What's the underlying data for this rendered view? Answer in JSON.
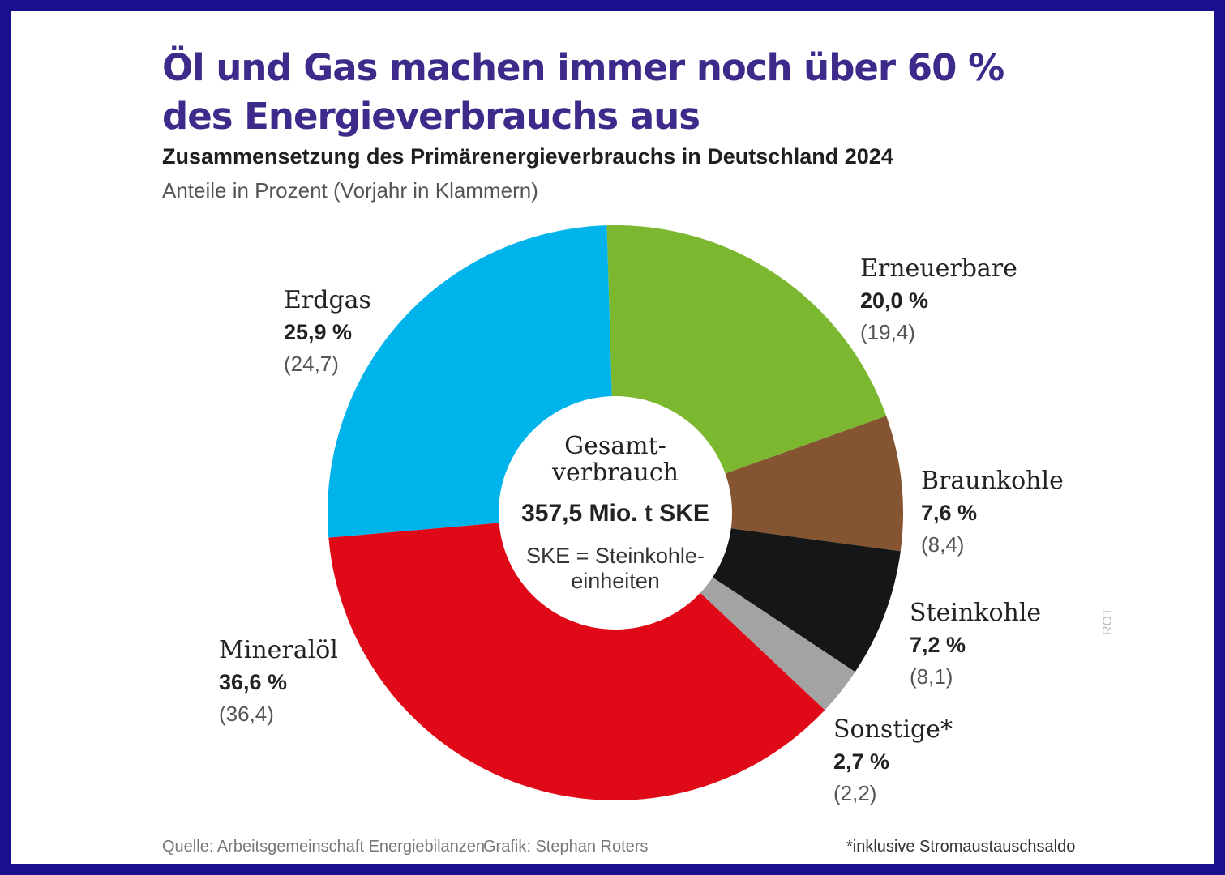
{
  "title_line1": "Öl und Gas machen immer noch über 60 %",
  "title_line2": "des Energieverbrauchs aus",
  "subtitle": "Zusammensetzung des Primärenergieverbrauchs in Deutschland 2024",
  "unit_note": "Anteile in Prozent (Vorjahr in Klammern)",
  "center": {
    "line1": "Gesamt-",
    "line2": "verbrauch",
    "total": "357,5 Mio. t SKE",
    "note1": "SKE = Steinkohle-",
    "note2": "einheiten"
  },
  "chart_data": {
    "type": "pie",
    "variant": "donut",
    "title": "Zusammensetzung des Primärenergieverbrauchs in Deutschland 2024",
    "unit": "Prozent",
    "series": [
      {
        "name": "Erneuerbare",
        "value": 20.0,
        "value_label": "20,0 %",
        "prev": 19.4,
        "prev_label": "(19,4)",
        "color": "#7cb82f"
      },
      {
        "name": "Braunkohle",
        "value": 7.6,
        "value_label": "7,6 %",
        "prev": 8.4,
        "prev_label": "(8,4)",
        "color": "#855532"
      },
      {
        "name": "Steinkohle",
        "value": 7.2,
        "value_label": "7,2 %",
        "prev": 8.1,
        "prev_label": "(8,1)",
        "color": "#161616"
      },
      {
        "name": "Sonstige*",
        "value": 2.7,
        "value_label": "2,7 %",
        "prev": 2.2,
        "prev_label": "(2,2)",
        "color": "#a3a3a3"
      },
      {
        "name": "Mineralöl",
        "value": 36.6,
        "value_label": "36,6 %",
        "prev": 36.4,
        "prev_label": "(36,4)",
        "color": "#e00917"
      },
      {
        "name": "Erdgas",
        "value": 25.9,
        "value_label": "25,9 %",
        "prev": 24.7,
        "prev_label": "(24,7)",
        "color": "#00b3ea"
      }
    ]
  },
  "footer": {
    "source": "Quelle: Arbeitsgemeinschaft Energiebilanzen",
    "credit": "Grafik: Stephan Roters",
    "footnote": "*inklusive Stromaustauschsaldo",
    "tag": "ROT"
  }
}
